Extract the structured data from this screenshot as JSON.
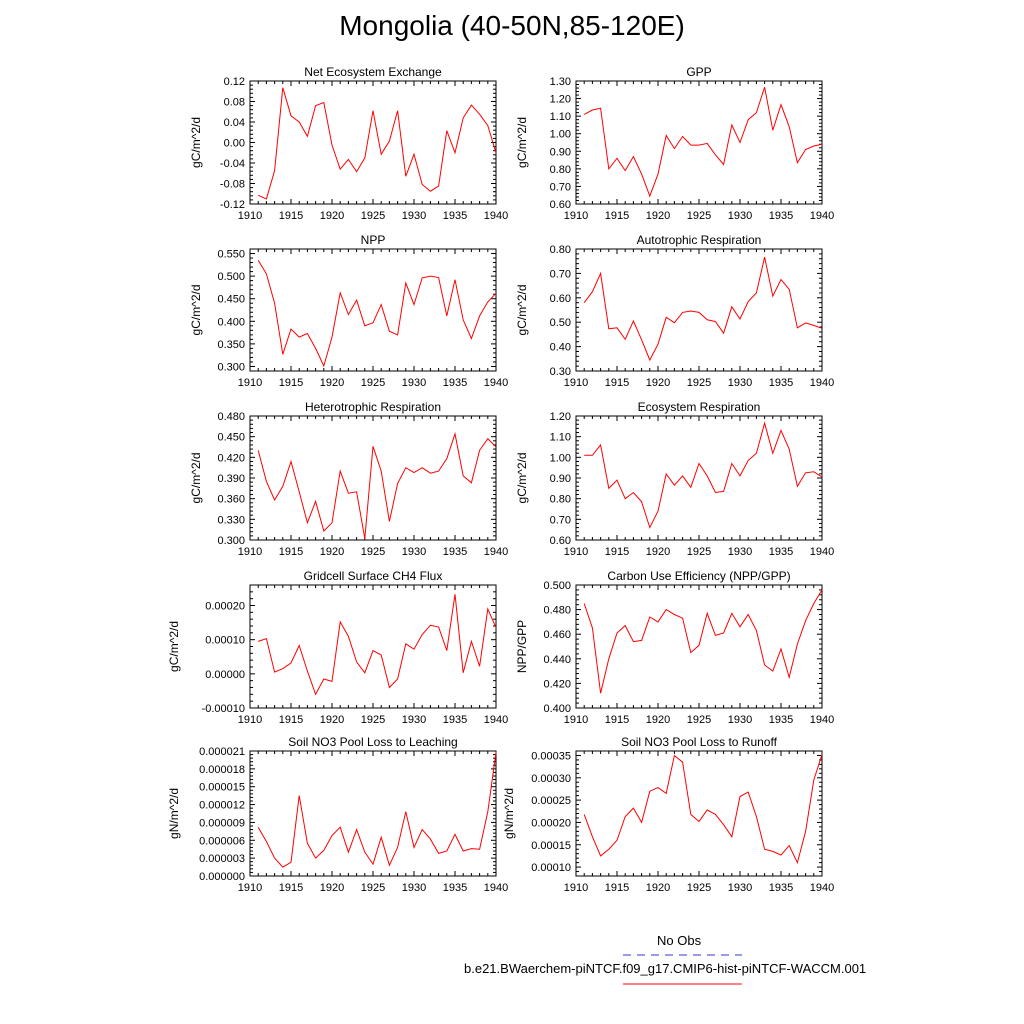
{
  "title": "Mongolia (40-50N,85-120E)",
  "legend": {
    "items": [
      {
        "label": "No Obs",
        "color": "#3333cc",
        "style": "dashed"
      },
      {
        "label": "b.e21.BWaerchem-piNTCF.f09_g17.CMIP6-hist-piNTCF-WACCM.001",
        "color": "#ff0000",
        "style": "solid"
      }
    ]
  },
  "chart_data": [
    {
      "type": "line",
      "title": "Net Ecosystem Exchange",
      "ylabel": "gC/m^2/d",
      "xlim": [
        1910,
        1940
      ],
      "ylim": [
        -0.12,
        0.12
      ],
      "xticks": [
        "1910",
        "1915",
        "1920",
        "1925",
        "1930",
        "1935",
        "1940"
      ],
      "yticks": [
        "-0.12",
        "-0.08",
        "-0.04",
        "0.00",
        "0.04",
        "0.08",
        "0.12"
      ],
      "ytick_values": [
        -0.12,
        -0.08,
        -0.04,
        0.0,
        0.04,
        0.08,
        0.12
      ],
      "x": [
        1911,
        1912,
        1913,
        1914,
        1915,
        1916,
        1917,
        1918,
        1919,
        1920,
        1921,
        1922,
        1923,
        1924,
        1925,
        1926,
        1927,
        1928,
        1929,
        1930,
        1931,
        1932,
        1933,
        1934,
        1935,
        1936,
        1937,
        1938,
        1939,
        1940
      ],
      "series": [
        {
          "color": "#ff0000",
          "values": [
            -0.103,
            -0.11,
            -0.055,
            0.107,
            0.052,
            0.04,
            0.012,
            0.072,
            0.078,
            -0.005,
            -0.052,
            -0.033,
            -0.057,
            -0.03,
            0.062,
            -0.023,
            0.003,
            0.062,
            -0.066,
            -0.023,
            -0.082,
            -0.095,
            -0.085,
            0.023,
            -0.02,
            0.048,
            0.073,
            0.055,
            0.033,
            -0.02
          ]
        }
      ]
    },
    {
      "type": "line",
      "title": "GPP",
      "ylabel": "gC/m^2/d",
      "xlim": [
        1910,
        1940
      ],
      "ylim": [
        0.6,
        1.3
      ],
      "xticks": [
        "1910",
        "1915",
        "1920",
        "1925",
        "1930",
        "1935",
        "1940"
      ],
      "yticks": [
        "0.60",
        "0.70",
        "0.80",
        "0.90",
        "1.00",
        "1.10",
        "1.20",
        "1.30"
      ],
      "ytick_values": [
        0.6,
        0.7,
        0.8,
        0.9,
        1.0,
        1.1,
        1.2,
        1.3
      ],
      "x": [
        1911,
        1912,
        1913,
        1914,
        1915,
        1916,
        1917,
        1918,
        1919,
        1920,
        1921,
        1922,
        1923,
        1924,
        1925,
        1926,
        1927,
        1928,
        1929,
        1930,
        1931,
        1932,
        1933,
        1934,
        1935,
        1936,
        1937,
        1938,
        1939,
        1940
      ],
      "series": [
        {
          "color": "#ff0000",
          "values": [
            1.11,
            1.135,
            1.145,
            0.8,
            0.86,
            0.79,
            0.87,
            0.77,
            0.645,
            0.77,
            0.99,
            0.915,
            0.985,
            0.935,
            0.935,
            0.945,
            0.88,
            0.825,
            1.05,
            0.95,
            1.08,
            1.12,
            1.265,
            1.02,
            1.165,
            1.04,
            0.835,
            0.91,
            0.93,
            0.94
          ]
        }
      ]
    },
    {
      "type": "line",
      "title": "NPP",
      "ylabel": "gC/m^2/d",
      "xlim": [
        1910,
        1940
      ],
      "ylim": [
        0.29,
        0.56
      ],
      "xticks": [
        "1910",
        "1915",
        "1920",
        "1925",
        "1930",
        "1935",
        "1940"
      ],
      "yticks": [
        "0.300",
        "0.350",
        "0.400",
        "0.450",
        "0.500",
        "0.550"
      ],
      "ytick_values": [
        0.3,
        0.35,
        0.4,
        0.45,
        0.5,
        0.55
      ],
      "x": [
        1911,
        1912,
        1913,
        1914,
        1915,
        1916,
        1917,
        1918,
        1919,
        1920,
        1921,
        1922,
        1923,
        1924,
        1925,
        1926,
        1927,
        1928,
        1929,
        1930,
        1931,
        1932,
        1933,
        1934,
        1935,
        1936,
        1937,
        1938,
        1939,
        1940
      ],
      "series": [
        {
          "color": "#ff0000",
          "values": [
            0.535,
            0.505,
            0.44,
            0.327,
            0.383,
            0.365,
            0.373,
            0.34,
            0.301,
            0.365,
            0.463,
            0.415,
            0.447,
            0.39,
            0.397,
            0.437,
            0.378,
            0.37,
            0.485,
            0.437,
            0.496,
            0.5,
            0.497,
            0.412,
            0.492,
            0.403,
            0.362,
            0.412,
            0.443,
            0.462
          ]
        }
      ]
    },
    {
      "type": "line",
      "title": "Autotrophic Respiration",
      "ylabel": "gC/m^2/d",
      "xlim": [
        1910,
        1940
      ],
      "ylim": [
        0.3,
        0.8
      ],
      "xticks": [
        "1910",
        "1915",
        "1920",
        "1925",
        "1930",
        "1935",
        "1940"
      ],
      "yticks": [
        "0.30",
        "0.40",
        "0.50",
        "0.60",
        "0.70",
        "0.80"
      ],
      "ytick_values": [
        0.3,
        0.4,
        0.5,
        0.6,
        0.7,
        0.8
      ],
      "x": [
        1911,
        1912,
        1913,
        1914,
        1915,
        1916,
        1917,
        1918,
        1919,
        1920,
        1921,
        1922,
        1923,
        1924,
        1925,
        1926,
        1927,
        1928,
        1929,
        1930,
        1931,
        1932,
        1933,
        1934,
        1935,
        1936,
        1937,
        1938,
        1939,
        1940
      ],
      "series": [
        {
          "color": "#ff0000",
          "values": [
            0.58,
            0.625,
            0.7,
            0.473,
            0.477,
            0.43,
            0.505,
            0.428,
            0.345,
            0.41,
            0.52,
            0.498,
            0.54,
            0.546,
            0.54,
            0.51,
            0.503,
            0.455,
            0.563,
            0.513,
            0.585,
            0.62,
            0.767,
            0.607,
            0.675,
            0.635,
            0.477,
            0.497,
            0.487,
            0.475
          ]
        }
      ]
    },
    {
      "type": "line",
      "title": "Heterotrophic Respiration",
      "ylabel": "gC/m^2/d",
      "xlim": [
        1910,
        1940
      ],
      "ylim": [
        0.3,
        0.48
      ],
      "xticks": [
        "1910",
        "1915",
        "1920",
        "1925",
        "1930",
        "1935",
        "1940"
      ],
      "yticks": [
        "0.300",
        "0.330",
        "0.360",
        "0.390",
        "0.420",
        "0.450",
        "0.480"
      ],
      "ytick_values": [
        0.3,
        0.33,
        0.36,
        0.39,
        0.42,
        0.45,
        0.48
      ],
      "x": [
        1911,
        1912,
        1913,
        1914,
        1915,
        1916,
        1917,
        1918,
        1919,
        1920,
        1921,
        1922,
        1923,
        1924,
        1925,
        1926,
        1927,
        1928,
        1929,
        1930,
        1931,
        1932,
        1933,
        1934,
        1935,
        1936,
        1937,
        1938,
        1939,
        1940
      ],
      "series": [
        {
          "color": "#ff0000",
          "values": [
            0.43,
            0.385,
            0.358,
            0.378,
            0.414,
            0.37,
            0.325,
            0.356,
            0.313,
            0.325,
            0.4,
            0.368,
            0.37,
            0.302,
            0.436,
            0.4,
            0.327,
            0.382,
            0.405,
            0.398,
            0.405,
            0.397,
            0.4,
            0.418,
            0.454,
            0.393,
            0.383,
            0.43,
            0.447,
            0.435
          ]
        }
      ]
    },
    {
      "type": "line",
      "title": "Ecosystem Respiration",
      "ylabel": "gC/m^2/d",
      "xlim": [
        1910,
        1940
      ],
      "ylim": [
        0.6,
        1.2
      ],
      "xticks": [
        "1910",
        "1915",
        "1920",
        "1925",
        "1930",
        "1935",
        "1940"
      ],
      "yticks": [
        "0.60",
        "0.70",
        "0.80",
        "0.90",
        "1.00",
        "1.10",
        "1.20"
      ],
      "ytick_values": [
        0.6,
        0.7,
        0.8,
        0.9,
        1.0,
        1.1,
        1.2
      ],
      "x": [
        1911,
        1912,
        1913,
        1914,
        1915,
        1916,
        1917,
        1918,
        1919,
        1920,
        1921,
        1922,
        1923,
        1924,
        1925,
        1926,
        1927,
        1928,
        1929,
        1930,
        1931,
        1932,
        1933,
        1934,
        1935,
        1936,
        1937,
        1938,
        1939,
        1940
      ],
      "series": [
        {
          "color": "#ff0000",
          "values": [
            1.01,
            1.01,
            1.06,
            0.85,
            0.89,
            0.8,
            0.83,
            0.785,
            0.66,
            0.74,
            0.92,
            0.865,
            0.91,
            0.855,
            0.97,
            0.91,
            0.83,
            0.835,
            0.97,
            0.91,
            0.985,
            1.02,
            1.165,
            1.02,
            1.13,
            1.04,
            0.86,
            0.925,
            0.93,
            0.905
          ]
        }
      ]
    },
    {
      "type": "line",
      "title": "Gridcell Surface CH4 Flux",
      "ylabel": "gC/m^2/d",
      "xlim": [
        1910,
        1940
      ],
      "ylim": [
        -0.0001,
        0.00026
      ],
      "xticks": [
        "1910",
        "1915",
        "1920",
        "1925",
        "1930",
        "1935",
        "1940"
      ],
      "yticks": [
        "-0.00010",
        "0.00000",
        "0.00010",
        "0.00020"
      ],
      "ytick_values": [
        -0.0001,
        0.0,
        0.0001,
        0.0002
      ],
      "x": [
        1911,
        1912,
        1913,
        1914,
        1915,
        1916,
        1917,
        1918,
        1919,
        1920,
        1921,
        1922,
        1923,
        1924,
        1925,
        1926,
        1927,
        1928,
        1929,
        1930,
        1931,
        1932,
        1933,
        1934,
        1935,
        1936,
        1937,
        1938,
        1939,
        1940
      ],
      "series": [
        {
          "color": "#ff0000",
          "values": [
            9.5e-05,
            0.000103,
            5e-06,
            1.5e-05,
            3.2e-05,
            8.3e-05,
            8e-06,
            -6e-05,
            -1.5e-05,
            -2.2e-05,
            0.000152,
            0.00011,
            3.5e-05,
            3e-06,
            6.8e-05,
            5.5e-05,
            -4e-05,
            -1.5e-05,
            8.8e-05,
            7.2e-05,
            0.000115,
            0.000142,
            0.000137,
            6.8e-05,
            0.000233,
            3e-06,
            9.5e-05,
            2.2e-05,
            0.00019,
            0.000135
          ]
        }
      ]
    },
    {
      "type": "line",
      "title": "Carbon Use Efficiency (NPP/GPP)",
      "ylabel": "NPP/GPP",
      "xlim": [
        1910,
        1940
      ],
      "ylim": [
        0.4,
        0.5
      ],
      "xticks": [
        "1910",
        "1915",
        "1920",
        "1925",
        "1930",
        "1935",
        "1940"
      ],
      "yticks": [
        "0.400",
        "0.420",
        "0.440",
        "0.460",
        "0.480",
        "0.500"
      ],
      "ytick_values": [
        0.4,
        0.42,
        0.44,
        0.46,
        0.48,
        0.5
      ],
      "x": [
        1911,
        1912,
        1913,
        1914,
        1915,
        1916,
        1917,
        1918,
        1919,
        1920,
        1921,
        1922,
        1923,
        1924,
        1925,
        1926,
        1927,
        1928,
        1929,
        1930,
        1931,
        1932,
        1933,
        1934,
        1935,
        1936,
        1937,
        1938,
        1939,
        1940
      ],
      "series": [
        {
          "color": "#ff0000",
          "values": [
            0.485,
            0.465,
            0.412,
            0.44,
            0.461,
            0.467,
            0.454,
            0.455,
            0.474,
            0.47,
            0.48,
            0.476,
            0.473,
            0.445,
            0.451,
            0.477,
            0.459,
            0.461,
            0.477,
            0.466,
            0.476,
            0.463,
            0.435,
            0.43,
            0.448,
            0.425,
            0.452,
            0.471,
            0.485,
            0.496
          ]
        }
      ]
    },
    {
      "type": "line",
      "title": "Soil NO3 Pool Loss to Leaching",
      "ylabel": "gN/m^2/d",
      "xlim": [
        1910,
        1940
      ],
      "ylim": [
        0.0,
        2.1e-05
      ],
      "xticks": [
        "1910",
        "1915",
        "1920",
        "1925",
        "1930",
        "1935",
        "1940"
      ],
      "yticks": [
        "0.000000",
        "0.000003",
        "0.000006",
        "0.000009",
        "0.000012",
        "0.000015",
        "0.000018",
        "0.000021"
      ],
      "ytick_values": [
        0.0,
        3e-06,
        6e-06,
        9e-06,
        1.2e-05,
        1.5e-05,
        1.8e-05,
        2.1e-05
      ],
      "x": [
        1911,
        1912,
        1913,
        1914,
        1915,
        1916,
        1917,
        1918,
        1919,
        1920,
        1921,
        1922,
        1923,
        1924,
        1925,
        1926,
        1927,
        1928,
        1929,
        1930,
        1931,
        1932,
        1933,
        1934,
        1935,
        1936,
        1937,
        1938,
        1939,
        1940
      ],
      "series": [
        {
          "color": "#ff0000",
          "values": [
            8.2e-06,
            5.8e-06,
            3e-06,
            1.5e-06,
            2.3e-06,
            1.35e-05,
            5.5e-06,
            3e-06,
            4.3e-06,
            6.8e-06,
            8.2e-06,
            4e-06,
            7.8e-06,
            4e-06,
            2e-06,
            6.5e-06,
            1.8e-06,
            4.8e-06,
            1.08e-05,
            4.8e-06,
            7.8e-06,
            6.2e-06,
            3.8e-06,
            4.2e-06,
            7e-06,
            4.2e-06,
            4.6e-06,
            4.5e-06,
            1.08e-05,
            2.08e-05
          ]
        }
      ]
    },
    {
      "type": "line",
      "title": "Soil NO3 Pool Loss to Runoff",
      "ylabel": "gN/m^2/d",
      "xlim": [
        1910,
        1940
      ],
      "ylim": [
        8e-05,
        0.00036
      ],
      "xticks": [
        "1910",
        "1915",
        "1920",
        "1925",
        "1930",
        "1935",
        "1940"
      ],
      "yticks": [
        "0.00010",
        "0.00015",
        "0.00020",
        "0.00025",
        "0.00030",
        "0.00035"
      ],
      "ytick_values": [
        0.0001,
        0.00015,
        0.0002,
        0.00025,
        0.0003,
        0.00035
      ],
      "x": [
        1911,
        1912,
        1913,
        1914,
        1915,
        1916,
        1917,
        1918,
        1919,
        1920,
        1921,
        1922,
        1923,
        1924,
        1925,
        1926,
        1927,
        1928,
        1929,
        1930,
        1931,
        1932,
        1933,
        1934,
        1935,
        1936,
        1937,
        1938,
        1939,
        1940
      ],
      "series": [
        {
          "color": "#ff0000",
          "values": [
            0.000218,
            0.000168,
            0.000125,
            0.00014,
            0.00016,
            0.000213,
            0.000232,
            0.0002,
            0.00027,
            0.000278,
            0.000265,
            0.00035,
            0.000335,
            0.000218,
            0.000202,
            0.000228,
            0.000218,
            0.000195,
            0.000168,
            0.000258,
            0.000268,
            0.000213,
            0.00014,
            0.000135,
            0.000127,
            0.000148,
            0.00011,
            0.00018,
            0.000295,
            0.000352
          ]
        }
      ]
    }
  ]
}
